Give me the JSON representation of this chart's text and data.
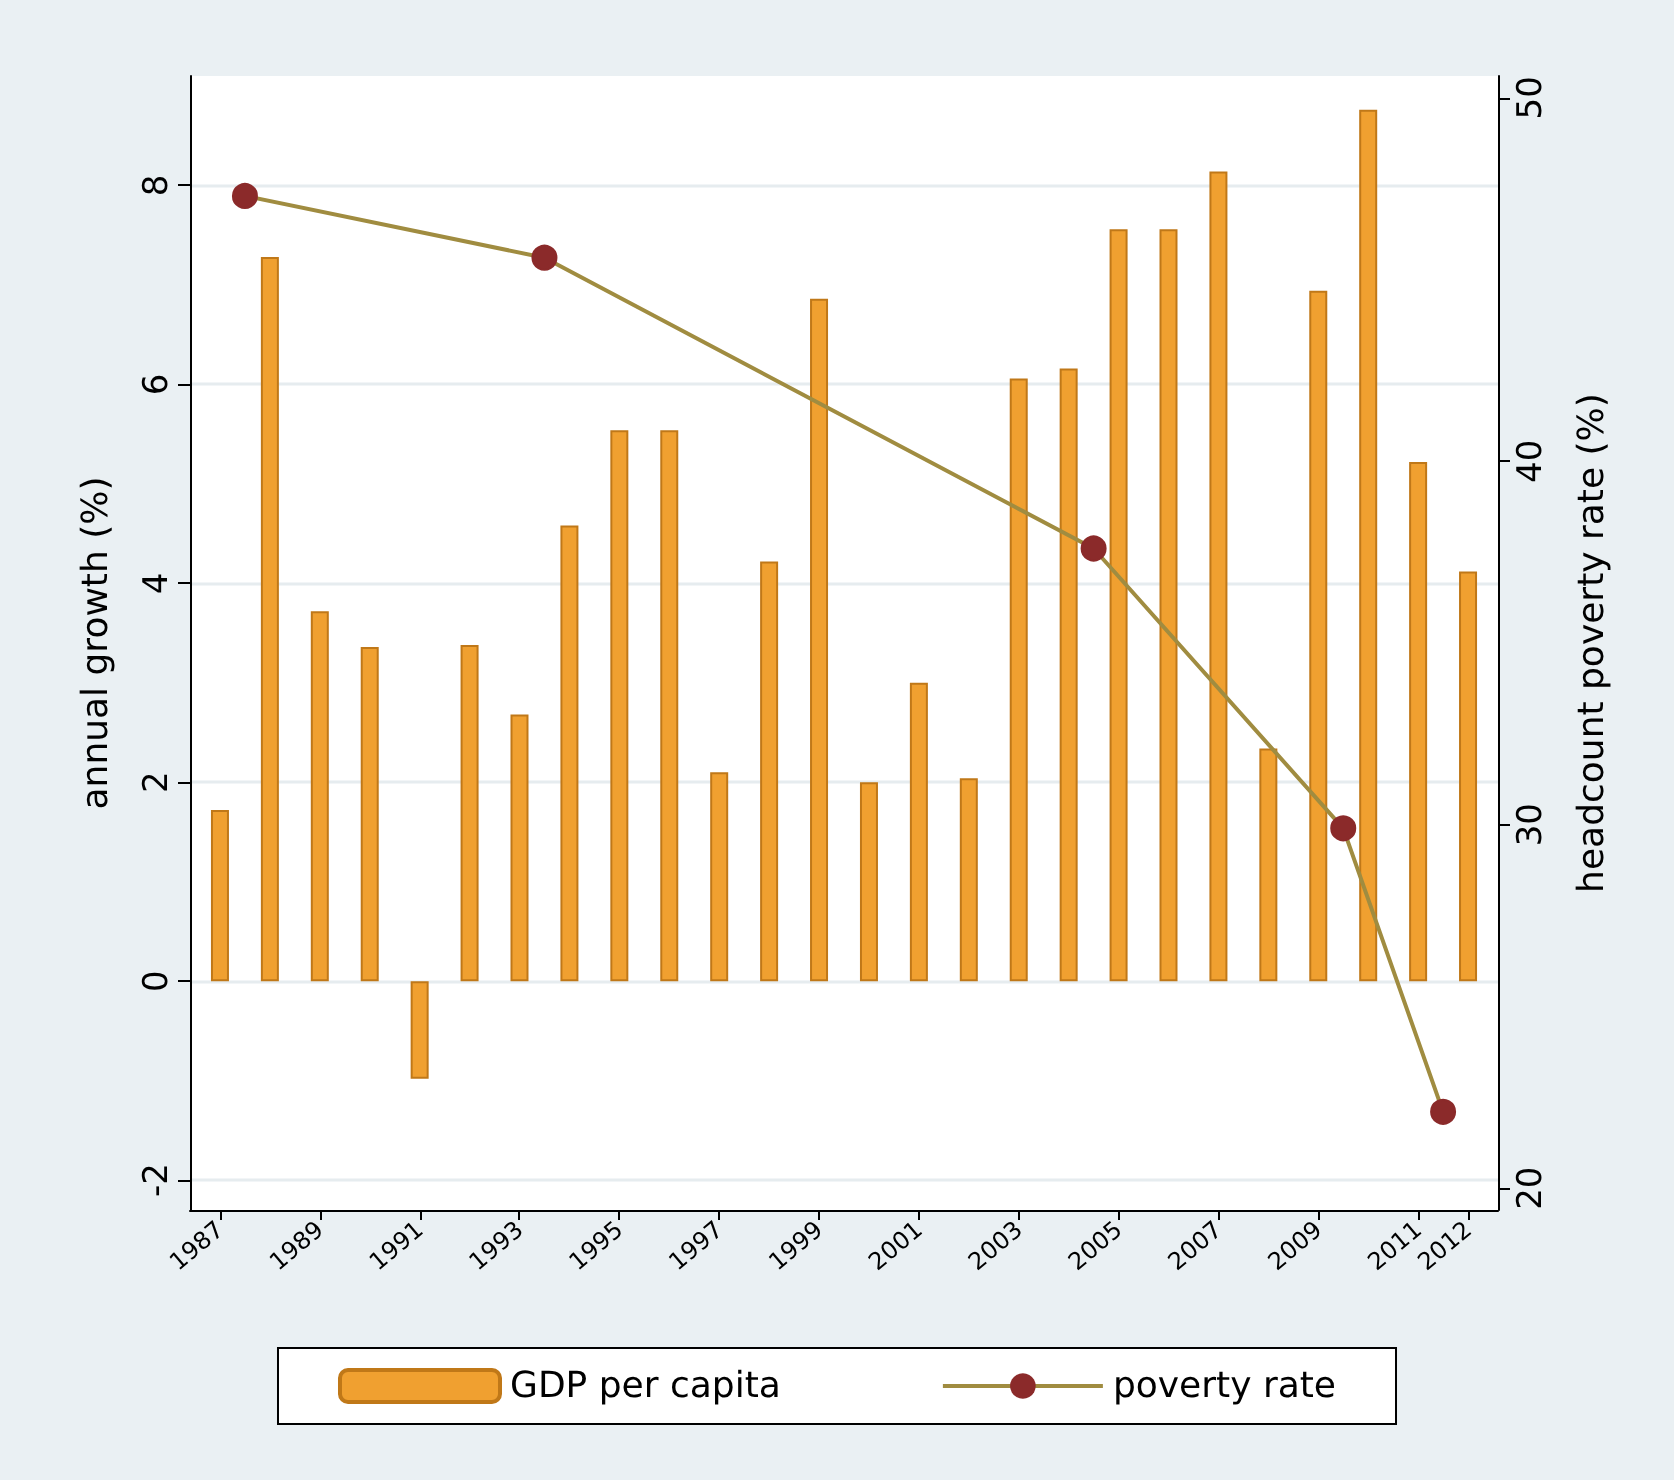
{
  "chart_data": {
    "type": "bar",
    "ylabel": "annual growth (%)",
    "y2label": "headcount poverty rate (%)",
    "x": [
      1987,
      1988,
      1989,
      1990,
      1991,
      1992,
      1993,
      1994,
      1995,
      1996,
      1997,
      1998,
      1999,
      2000,
      2001,
      2002,
      2003,
      2004,
      2005,
      2006,
      2007,
      2008,
      2009,
      2010,
      2011,
      2012
    ],
    "series": [
      {
        "name": "GDP per capita",
        "color": "#f0a030",
        "values": [
          1.72,
          7.28,
          3.72,
          3.36,
          -0.98,
          3.38,
          2.68,
          4.58,
          5.54,
          5.54,
          2.1,
          4.22,
          6.86,
          2.0,
          3.0,
          2.04,
          6.06,
          6.16,
          7.56,
          7.56,
          8.14,
          2.34,
          6.94,
          8.76,
          5.22,
          4.12
        ]
      },
      {
        "name": "poverty rate",
        "type": "line",
        "axis": "y2",
        "color": "#a08c40",
        "marker": "circle",
        "x": [
          1987.5,
          1993.5,
          2004.5,
          2009.5,
          2011.5
        ],
        "values": [
          47.3,
          45.6,
          37.6,
          29.9,
          22.1
        ]
      }
    ],
    "xlim": [
      1986.4,
      2012.6
    ],
    "xticks": [
      1987,
      1989,
      1991,
      1993,
      1995,
      1997,
      1999,
      2001,
      2003,
      2005,
      2007,
      2009,
      2011,
      2012
    ],
    "ylim": [
      -2.3,
      9.1
    ],
    "yticks": [
      -2,
      0,
      2,
      4,
      6,
      8
    ],
    "y2lim": [
      19.4,
      50.6
    ],
    "y2ticks": [
      20,
      30,
      40,
      50
    ],
    "grid": "y",
    "legend": "bottom"
  }
}
